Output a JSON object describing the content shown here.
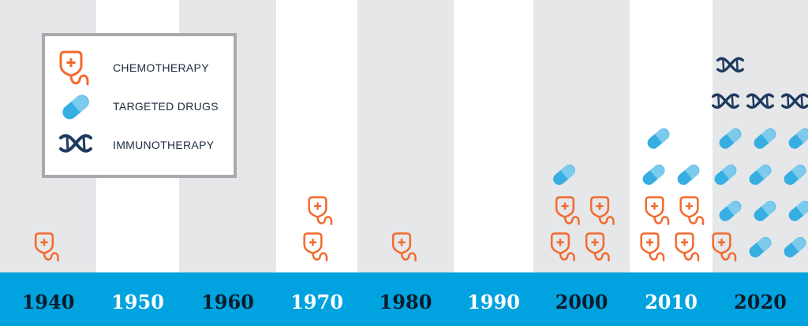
{
  "colors": {
    "chemotherapy": "#f26a2e",
    "targeted": "#37aee2",
    "immunotherapy": "#1f3a5f",
    "axis_band": "#00a3e0",
    "stripe_dark": "#e6e7e9",
    "stripe_light": "#ffffff",
    "year_dark": "#0d1b2a",
    "year_light": "#ffffff"
  },
  "icons": {
    "chemotherapy": "iv-bag-icon",
    "targeted": "capsule-icon",
    "immunotherapy": "dna-icon"
  },
  "chart_data": {
    "type": "timeline",
    "title": "",
    "xlabel": "",
    "ylabel": "",
    "decades": [
      "1940",
      "1950",
      "1960",
      "1970",
      "1980",
      "1990",
      "2000",
      "2010",
      "2020"
    ],
    "legend": [
      {
        "key": "chemotherapy",
        "label": "CHEMOTHERAPY"
      },
      {
        "key": "targeted",
        "label": "TARGETED DRUGS"
      },
      {
        "key": "immunotherapy",
        "label": "IMMUNOTHERAPY"
      }
    ],
    "legend_position": "top-left",
    "series": [
      {
        "key": "chemotherapy",
        "counts": [
          1,
          0,
          0,
          2,
          1,
          0,
          4,
          4,
          1
        ]
      },
      {
        "key": "targeted",
        "counts": [
          0,
          0,
          0,
          0,
          0,
          0,
          1,
          3,
          11
        ]
      },
      {
        "key": "immunotherapy",
        "counts": [
          0,
          0,
          0,
          0,
          0,
          0,
          0,
          0,
          4
        ]
      }
    ]
  }
}
